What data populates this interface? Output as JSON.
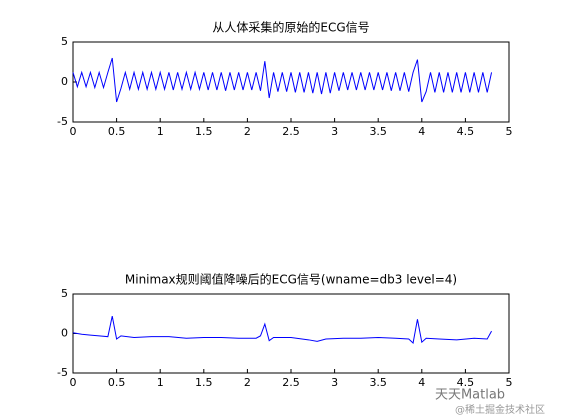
{
  "chart_data": [
    {
      "type": "line",
      "title": "从人体采集的原始的ECG信号",
      "x": [
        0,
        0.05,
        0.1,
        0.15,
        0.2,
        0.25,
        0.3,
        0.35,
        0.4,
        0.45,
        0.5,
        0.55,
        0.6,
        0.65,
        0.7,
        0.75,
        0.8,
        0.85,
        0.9,
        0.95,
        1.0,
        1.05,
        1.1,
        1.15,
        1.2,
        1.25,
        1.3,
        1.35,
        1.4,
        1.45,
        1.5,
        1.55,
        1.6,
        1.65,
        1.7,
        1.75,
        1.8,
        1.85,
        1.9,
        1.95,
        2.0,
        2.05,
        2.1,
        2.15,
        2.2,
        2.25,
        2.3,
        2.35,
        2.4,
        2.45,
        2.5,
        2.55,
        2.6,
        2.65,
        2.7,
        2.75,
        2.8,
        2.85,
        2.9,
        2.95,
        3.0,
        3.05,
        3.1,
        3.15,
        3.2,
        3.25,
        3.3,
        3.35,
        3.4,
        3.45,
        3.5,
        3.55,
        3.6,
        3.65,
        3.7,
        3.75,
        3.8,
        3.85,
        3.9,
        3.95,
        4.0,
        4.05,
        4.1,
        4.15,
        4.2,
        4.25,
        4.3,
        4.35,
        4.4,
        4.45,
        4.5,
        4.55,
        4.6,
        4.65,
        4.7,
        4.75,
        4.8
      ],
      "series": [
        {
          "color": "#0000ff",
          "values": [
            1.2,
            -0.6,
            1.2,
            -0.6,
            1.2,
            -0.7,
            1.2,
            -0.7,
            1.2,
            3.0,
            -2.5,
            -0.8,
            1.2,
            -0.9,
            1.2,
            -0.9,
            1.2,
            -0.9,
            1.2,
            -0.9,
            1.2,
            -0.9,
            1.2,
            -1.0,
            1.2,
            -0.9,
            1.2,
            -0.9,
            1.2,
            -0.9,
            1.2,
            -1.0,
            1.2,
            -1.0,
            1.2,
            -1.1,
            1.2,
            -1.0,
            1.2,
            -1.0,
            1.2,
            -1.0,
            1.2,
            -1.1,
            2.6,
            -2.0,
            1.2,
            -1.2,
            1.2,
            -1.2,
            1.2,
            -1.3,
            1.2,
            -1.3,
            1.2,
            -1.4,
            1.2,
            -1.5,
            1.2,
            -1.4,
            1.2,
            -1.1,
            1.2,
            -1.0,
            1.2,
            -1.0,
            1.2,
            -1.0,
            1.2,
            -1.0,
            1.2,
            -1.0,
            1.2,
            -1.1,
            1.2,
            -1.1,
            1.2,
            -1.2,
            1.2,
            2.8,
            -2.5,
            -1.2,
            1.2,
            -1.3,
            1.2,
            -1.3,
            1.2,
            -1.3,
            1.2,
            -1.3,
            1.2,
            -1.3,
            1.2,
            -1.3,
            1.2,
            -1.3,
            1.2
          ]
        }
      ],
      "xlim": [
        0,
        5
      ],
      "xticks": [
        0,
        0.5,
        1,
        1.5,
        2,
        2.5,
        3,
        3.5,
        4,
        4.5,
        5
      ],
      "ylim": [
        -5,
        5
      ],
      "yticks": [
        -5,
        0,
        5
      ]
    },
    {
      "type": "line",
      "title": "Minimax规则阈值降噪后的ECG信号(wname=db3 level=4)",
      "x": [
        0,
        0.1,
        0.2,
        0.3,
        0.4,
        0.45,
        0.5,
        0.55,
        0.7,
        0.9,
        1.1,
        1.3,
        1.5,
        1.7,
        1.9,
        2.1,
        2.15,
        2.2,
        2.25,
        2.3,
        2.5,
        2.7,
        2.8,
        2.9,
        3.1,
        3.3,
        3.5,
        3.7,
        3.85,
        3.9,
        3.95,
        4.0,
        4.05,
        4.2,
        4.4,
        4.6,
        4.75,
        4.8
      ],
      "series": [
        {
          "color": "#0000ff",
          "values": [
            0.1,
            -0.1,
            -0.2,
            -0.3,
            -0.4,
            2.2,
            -0.7,
            -0.3,
            -0.5,
            -0.4,
            -0.4,
            -0.6,
            -0.5,
            -0.5,
            -0.6,
            -0.6,
            -0.3,
            1.2,
            -0.9,
            -0.5,
            -0.5,
            -0.8,
            -1.0,
            -0.7,
            -0.6,
            -0.6,
            -0.5,
            -0.6,
            -0.7,
            -1.2,
            1.8,
            -1.1,
            -0.6,
            -0.7,
            -0.8,
            -0.6,
            -0.7,
            0.3
          ]
        }
      ],
      "xlim": [
        0,
        5
      ],
      "xticks": [
        0,
        0.5,
        1,
        1.5,
        2,
        2.5,
        3,
        3.5,
        4,
        4.5,
        5
      ],
      "ylim": [
        -5,
        5
      ],
      "yticks": [
        -5,
        0,
        5
      ]
    }
  ],
  "watermark": {
    "name": "天天Matlab",
    "source": "@稀土掘金技术社区"
  }
}
